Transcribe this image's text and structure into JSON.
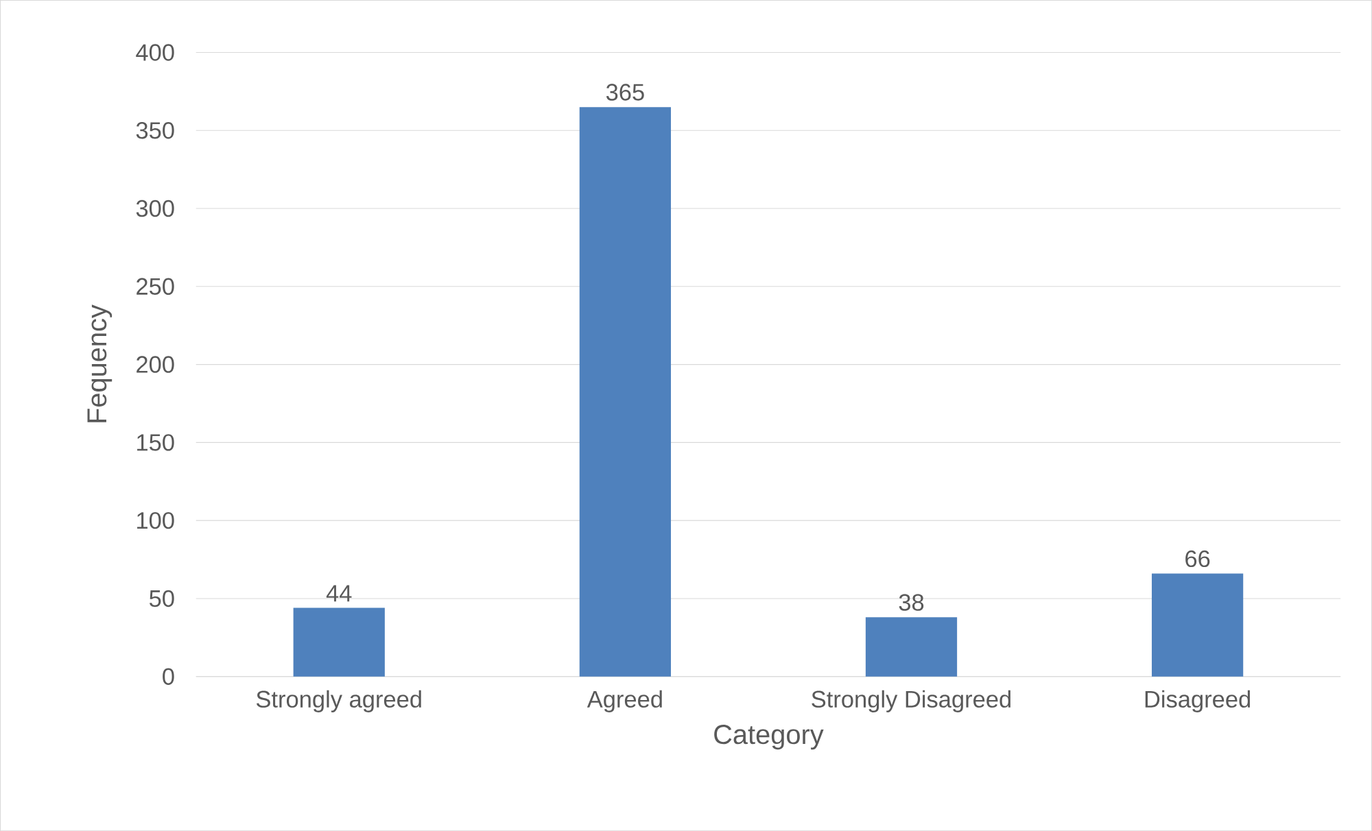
{
  "chart_data": {
    "type": "bar",
    "xlabel": "Category",
    "ylabel": "Fequency",
    "categories": [
      "Strongly agreed",
      "Agreed",
      "Strongly Disagreed",
      "Disagreed"
    ],
    "values": [
      44,
      365,
      38,
      66
    ],
    "color": "#4f81bd",
    "data_labels": true,
    "ylim": [
      0,
      400
    ],
    "yticks": [
      0,
      50,
      100,
      150,
      200,
      250,
      300,
      350,
      400
    ],
    "grid": "y"
  }
}
